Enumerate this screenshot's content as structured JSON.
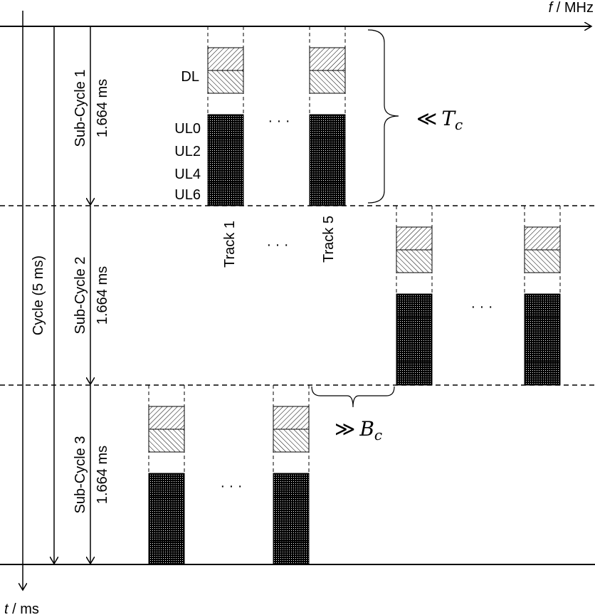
{
  "axes": {
    "f_label_var": "f",
    "f_label_unit": " / MHz",
    "t_label_var": "t",
    "t_label_unit": " / ms"
  },
  "cycle_label": "Cycle (5 ms)",
  "sub_cycles": [
    {
      "name": "Sub-Cycle 1",
      "duration": "1.664 ms"
    },
    {
      "name": "Sub-Cycle 2",
      "duration": "1.664 ms"
    },
    {
      "name": "Sub-Cycle 3",
      "duration": "1.664 ms"
    }
  ],
  "row_labels": {
    "dl": "DL",
    "ul": [
      "UL0",
      "UL2",
      "UL4",
      "UL6"
    ]
  },
  "track_labels": [
    "Track 1",
    "Track 5"
  ],
  "ellipsis": "· · ·",
  "annotations": {
    "tc_rel": "≪",
    "tc_sym": "T",
    "tc_sub": "c",
    "bc_rel": "≫",
    "bc_sym": "B",
    "bc_sub": "c"
  }
}
